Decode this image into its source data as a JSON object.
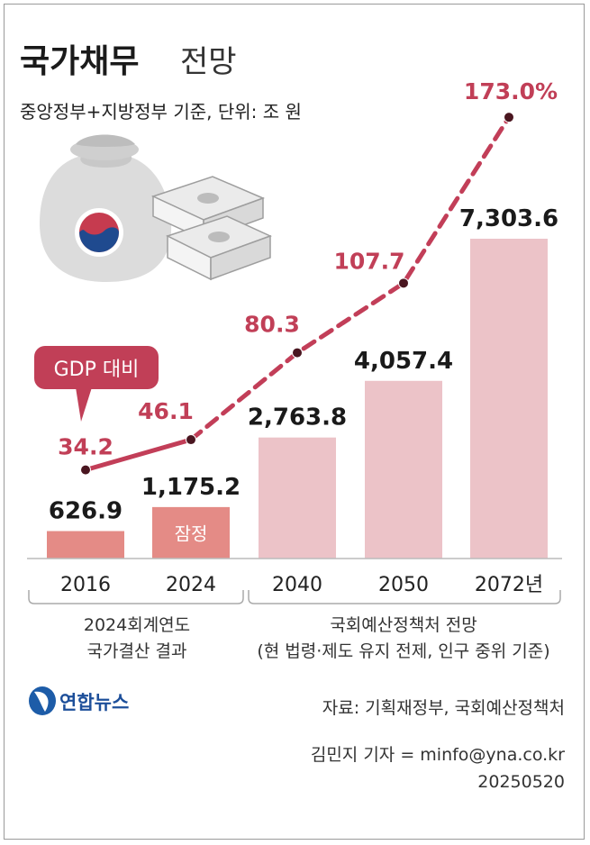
{
  "title": {
    "bold": "국가채무",
    "light": "전망"
  },
  "subtitle": "중앙정부+지방정부 기준, 단위: 조 원",
  "gdp_label": "GDP 대비",
  "provisional_label": "잠정",
  "groups": {
    "actual_line1": "2024회계연도",
    "actual_line2": "국가결산 결과",
    "forecast_line1": "국회예산정책처 전망",
    "forecast_line2": "(현 법령·제도 유지 전제, 인구 중위 기준)"
  },
  "logo_text": "연합뉴스",
  "source": "자료: 기획재정부, 국회예산정책처",
  "credit": "김민지 기자 = minfo@yna.co.kr",
  "date": "20250520",
  "colors": {
    "bar_dark": "#e48b86",
    "bar_light": "#ecc3c8",
    "line": "#c23e58",
    "accent": "#c13f57"
  },
  "chart_data": {
    "type": "bar",
    "title": "국가채무 전망",
    "unit": "조 원",
    "categories": [
      "2016",
      "2024",
      "2040",
      "2050",
      "2072년"
    ],
    "series": [
      {
        "name": "국가채무",
        "values": [
          626.9,
          1175.2,
          2763.8,
          4057.4,
          7303.6
        ],
        "labels": [
          "626.9",
          "1,175.2",
          "2,763.8",
          "4,057.4",
          "7,303.6"
        ]
      },
      {
        "name": "GDP 대비",
        "type": "line",
        "unit": "%",
        "values": [
          34.2,
          46.1,
          80.3,
          107.7,
          173.0
        ],
        "labels": [
          "34.2",
          "46.1",
          "80.3",
          "107.7",
          "173.0%"
        ]
      }
    ]
  }
}
